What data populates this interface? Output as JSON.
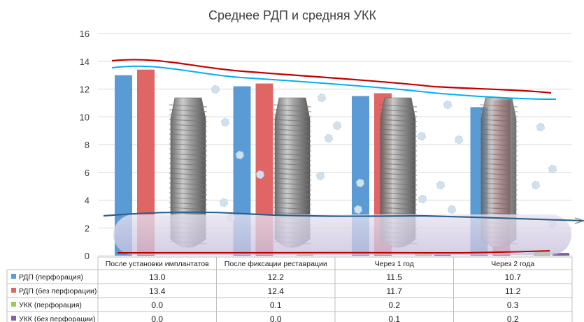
{
  "chart_data": {
    "type": "bar",
    "title": "Среднее РДП и средняя УКК",
    "categories": [
      "После установки имплантатов",
      "После фиксации реставрации",
      "Через 1 год",
      "Через 2 года"
    ],
    "ylim": [
      0,
      16
    ],
    "yticks": [
      "0",
      "2",
      "4",
      "6",
      "8",
      "10",
      "12",
      "14",
      "16"
    ],
    "grid": true,
    "legend_placement": "data table, left of rows",
    "series": [
      {
        "name": "РДП (перфорация)",
        "values": [
          13.0,
          12.2,
          11.5,
          10.7
        ],
        "labels": [
          "13.0",
          "12.2",
          "11.5",
          "10.7"
        ],
        "color": "#5b9bd5"
      },
      {
        "name": "РДП (без перфорации)",
        "values": [
          13.4,
          12.4,
          11.7,
          11.2
        ],
        "labels": [
          "13.4",
          "12.4",
          "11.7",
          "11.2"
        ],
        "color": "#e06666"
      },
      {
        "name": "УКК (перфорация)",
        "values": [
          0.0,
          0.1,
          0.2,
          0.3
        ],
        "labels": [
          "0.0",
          "0.1",
          "0.2",
          "0.3"
        ],
        "color": "#92d050"
      },
      {
        "name": "УКК (без перфорации)",
        "values": [
          0.0,
          0.0,
          0.1,
          0.2
        ],
        "labels": [
          "0.0",
          "0.0",
          "0.1",
          "0.2"
        ],
        "color": "#8064a2"
      }
    ],
    "decorations": {
      "implant_color": "#8c8c8c",
      "bone_band_color": "#c9c3de",
      "red_trend_color": "#c00000",
      "cyan_trend_color": "#00b0f0",
      "blue_trend_color": "#2e5f8a",
      "granule_color": "#cfe0ee"
    }
  }
}
